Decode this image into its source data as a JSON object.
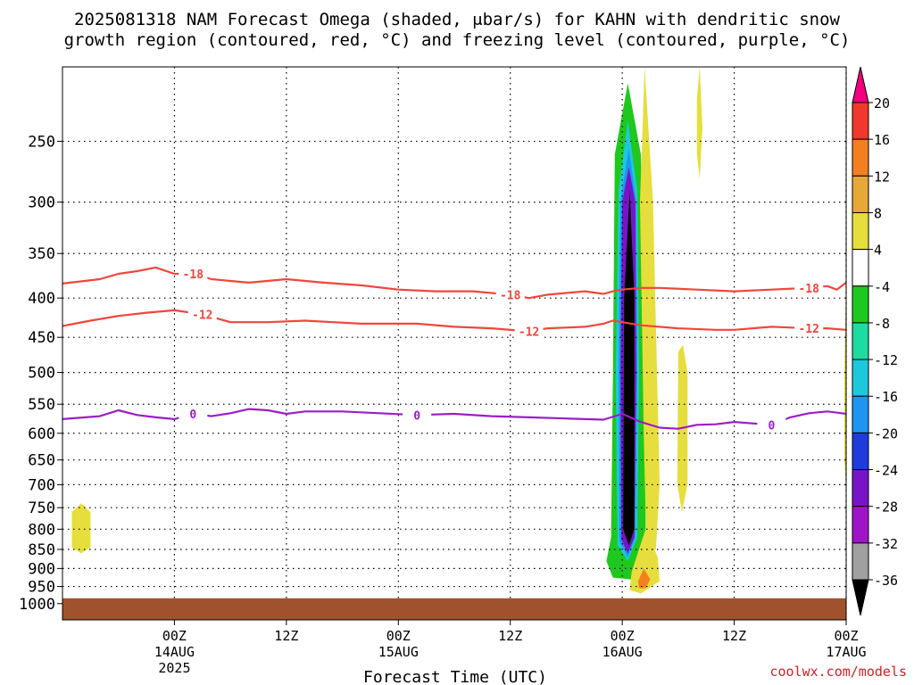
{
  "chart_data": {
    "type": "heatmap",
    "title_line1": "2025081318 NAM Forecast Omega (shaded, μbar/s) for KAHN with dendritic snow",
    "title_line2": "growth region (contoured, red, °C) and freezing level (contoured, purple, °C)",
    "xlabel": "Forecast Time (UTC)",
    "ylabel": "",
    "y_scale": "log-pressure",
    "y_axis": {
      "range": [
        200,
        1050
      ],
      "ticks": [
        250,
        300,
        350,
        400,
        450,
        500,
        550,
        600,
        650,
        700,
        750,
        800,
        850,
        900,
        950,
        1000
      ]
    },
    "x_axis": {
      "range_hours": [
        -6,
        78
      ],
      "ticks": [
        {
          "hour": 6,
          "label": "00Z",
          "sub1": "14AUG",
          "sub2": "2025"
        },
        {
          "hour": 18,
          "label": "12Z",
          "sub1": "",
          "sub2": ""
        },
        {
          "hour": 30,
          "label": "00Z",
          "sub1": "15AUG",
          "sub2": ""
        },
        {
          "hour": 42,
          "label": "12Z",
          "sub1": "",
          "sub2": ""
        },
        {
          "hour": 54,
          "label": "00Z",
          "sub1": "16AUG",
          "sub2": ""
        },
        {
          "hour": 66,
          "label": "12Z",
          "sub1": "",
          "sub2": ""
        },
        {
          "hour": 78,
          "label": "00Z",
          "sub1": "17AUG",
          "sub2": ""
        }
      ]
    },
    "colorbar": {
      "labels": [
        "20",
        "16",
        "12",
        "8",
        "4",
        "-4",
        "-8",
        "-12",
        "-16",
        "-20",
        "-24",
        "-28",
        "-32",
        "-36"
      ],
      "colors": [
        "#f2007e",
        "#f0382c",
        "#f28020",
        "#e6a838",
        "#e6de3c",
        "#ffffff",
        "#1ec81e",
        "#1edca0",
        "#1ec8dc",
        "#1e96f0",
        "#1e3cdc",
        "#7814c8",
        "#a014c8",
        "#a0a0a0",
        "#000000"
      ]
    },
    "contours": [
      {
        "label": "-18",
        "color": "#f0463c",
        "points": [
          [
            -6,
            383
          ],
          [
            -2,
            378
          ],
          [
            0,
            372
          ],
          [
            2,
            369
          ],
          [
            4,
            365
          ],
          [
            6,
            372
          ],
          [
            8,
            372
          ],
          [
            10,
            378
          ],
          [
            12,
            380
          ],
          [
            14,
            382
          ],
          [
            18,
            378
          ],
          [
            22,
            382
          ],
          [
            26,
            385
          ],
          [
            30,
            390
          ],
          [
            34,
            392
          ],
          [
            38,
            392
          ],
          [
            42,
            396
          ],
          [
            44,
            400
          ],
          [
            46,
            396
          ],
          [
            50,
            392
          ],
          [
            52,
            395
          ],
          [
            53,
            392
          ],
          [
            54,
            390
          ],
          [
            56,
            388
          ],
          [
            58,
            388
          ],
          [
            62,
            390
          ],
          [
            66,
            392
          ],
          [
            70,
            390
          ],
          [
            74,
            388
          ],
          [
            76,
            386
          ],
          [
            77,
            390
          ],
          [
            78,
            382
          ],
          [
            79,
            390
          ],
          [
            80,
            395
          ],
          [
            82,
            393
          ],
          [
            84,
            390
          ]
        ]
      },
      {
        "label": "-12",
        "color": "#f0463c",
        "points": [
          [
            -6,
            435
          ],
          [
            -3,
            428
          ],
          [
            0,
            422
          ],
          [
            3,
            418
          ],
          [
            6,
            415
          ],
          [
            9,
            420
          ],
          [
            12,
            430
          ],
          [
            16,
            430
          ],
          [
            20,
            428
          ],
          [
            26,
            432
          ],
          [
            32,
            432
          ],
          [
            36,
            436
          ],
          [
            40,
            438
          ],
          [
            44,
            442
          ],
          [
            46,
            438
          ],
          [
            50,
            436
          ],
          [
            52,
            432
          ],
          [
            53,
            428
          ],
          [
            54,
            430
          ],
          [
            56,
            434
          ],
          [
            60,
            438
          ],
          [
            64,
            440
          ],
          [
            66,
            440
          ],
          [
            70,
            436
          ],
          [
            74,
            438
          ],
          [
            76,
            438
          ],
          [
            78,
            440
          ],
          [
            79,
            430
          ],
          [
            80,
            438
          ],
          [
            82,
            440
          ],
          [
            84,
            435
          ]
        ]
      },
      {
        "label": "0",
        "color": "#9a1ec8",
        "points": [
          [
            -6,
            575
          ],
          [
            -2,
            570
          ],
          [
            0,
            560
          ],
          [
            2,
            568
          ],
          [
            4,
            572
          ],
          [
            6,
            575
          ],
          [
            8,
            566
          ],
          [
            10,
            570
          ],
          [
            12,
            565
          ],
          [
            14,
            558
          ],
          [
            16,
            560
          ],
          [
            18,
            566
          ],
          [
            20,
            562
          ],
          [
            24,
            562
          ],
          [
            28,
            565
          ],
          [
            32,
            568
          ],
          [
            36,
            566
          ],
          [
            40,
            570
          ],
          [
            44,
            572
          ],
          [
            48,
            574
          ],
          [
            52,
            576
          ],
          [
            54,
            566
          ],
          [
            56,
            580
          ],
          [
            58,
            590
          ],
          [
            60,
            592
          ],
          [
            62,
            585
          ],
          [
            64,
            584
          ],
          [
            66,
            580
          ],
          [
            70,
            585
          ],
          [
            72,
            572
          ],
          [
            74,
            565
          ],
          [
            76,
            562
          ],
          [
            80,
            570
          ],
          [
            82,
            576
          ],
          [
            84,
            570
          ]
        ]
      }
    ],
    "ground_pressure": 1000,
    "shaded_regions": [
      {
        "color": "#e6de3c",
        "points": [
          [
            -5,
            760
          ],
          [
            -4,
            740
          ],
          [
            -3,
            760
          ],
          [
            -3,
            845
          ],
          [
            -4,
            860
          ],
          [
            -5,
            845
          ]
        ]
      },
      {
        "color": "#1ec81e",
        "points": [
          [
            53.2,
            260
          ],
          [
            54.6,
            210
          ],
          [
            56.0,
            260
          ],
          [
            56.5,
            500
          ],
          [
            56.5,
            860
          ],
          [
            55,
            930
          ],
          [
            53,
            925
          ],
          [
            52.3,
            880
          ],
          [
            52.8,
            820
          ],
          [
            53.0,
            500
          ]
        ]
      },
      {
        "color": "#e6de3c",
        "points": [
          [
            55.9,
            300
          ],
          [
            56.4,
            200
          ],
          [
            57.3,
            300
          ],
          [
            58.0,
            700
          ],
          [
            57.6,
            850
          ],
          [
            56.6,
            860
          ],
          [
            56.3,
            600
          ]
        ]
      },
      {
        "color": "#1ec8dc",
        "points": [
          [
            53.6,
            290
          ],
          [
            54.6,
            235
          ],
          [
            55.6,
            290
          ],
          [
            55.8,
            500
          ],
          [
            55.6,
            820
          ],
          [
            54.6,
            880
          ],
          [
            53.5,
            840
          ],
          [
            53.3,
            500
          ]
        ]
      },
      {
        "color": "#1e96f0",
        "points": [
          [
            53.8,
            300
          ],
          [
            54.7,
            255
          ],
          [
            55.5,
            300
          ],
          [
            55.6,
            500
          ],
          [
            55.4,
            820
          ],
          [
            54.6,
            870
          ],
          [
            53.7,
            830
          ],
          [
            53.6,
            500
          ]
        ]
      },
      {
        "color": "#7814c8",
        "points": [
          [
            54.0,
            300
          ],
          [
            54.7,
            270
          ],
          [
            55.4,
            300
          ],
          [
            55.5,
            500
          ],
          [
            55.3,
            820
          ],
          [
            54.6,
            860
          ],
          [
            53.9,
            825
          ],
          [
            53.8,
            500
          ]
        ]
      },
      {
        "color": "#000000",
        "points": [
          [
            54.2,
            400
          ],
          [
            54.8,
            290
          ],
          [
            55.3,
            400
          ],
          [
            55.3,
            800
          ],
          [
            54.7,
            840
          ],
          [
            54.1,
            800
          ]
        ]
      },
      {
        "color": "#e6de3c",
        "points": [
          [
            60.0,
            470
          ],
          [
            60.5,
            460
          ],
          [
            61.0,
            500
          ],
          [
            61.0,
            700
          ],
          [
            60.4,
            760
          ],
          [
            59.9,
            700
          ]
        ]
      },
      {
        "color": "#e6de3c",
        "points": [
          [
            55.0,
            910
          ],
          [
            56.5,
            800
          ],
          [
            57.8,
            870
          ],
          [
            58.0,
            935
          ],
          [
            56.0,
            970
          ],
          [
            54.8,
            960
          ]
        ]
      },
      {
        "color": "#f28020",
        "points": [
          [
            55.7,
            935
          ],
          [
            56.3,
            900
          ],
          [
            57.0,
            930
          ],
          [
            56.5,
            955
          ],
          [
            55.8,
            955
          ]
        ]
      },
      {
        "color": "#e6de3c",
        "points": [
          [
            62.0,
            220
          ],
          [
            62.3,
            200
          ],
          [
            62.6,
            240
          ],
          [
            62.3,
            280
          ],
          [
            62.0,
            260
          ]
        ]
      },
      {
        "color": "#1ec81e",
        "points": [
          [
            78.5,
            300
          ],
          [
            79.0,
            200
          ],
          [
            81.0,
            200
          ],
          [
            81.5,
            300
          ],
          [
            81.4,
            380
          ],
          [
            80.5,
            400
          ],
          [
            79.0,
            380
          ]
        ]
      },
      {
        "color": "#1edca0",
        "points": [
          [
            80.5,
            230
          ],
          [
            81.2,
            200
          ],
          [
            81.6,
            300
          ],
          [
            81.2,
            340
          ],
          [
            80.6,
            300
          ]
        ]
      },
      {
        "color": "#e6de3c",
        "points": [
          [
            78.0,
            380
          ],
          [
            79.0,
            370
          ],
          [
            81.0,
            380
          ],
          [
            81.5,
            450
          ],
          [
            81.5,
            850
          ],
          [
            80.0,
            880
          ],
          [
            78.5,
            860
          ],
          [
            77.8,
            650
          ],
          [
            77.8,
            500
          ]
        ]
      },
      {
        "color": "#e6a838",
        "points": [
          [
            83.0,
            330
          ],
          [
            84.0,
            290
          ],
          [
            84.2,
            390
          ],
          [
            83.0,
            420
          ],
          [
            82.5,
            380
          ]
        ]
      },
      {
        "color": "#f28020",
        "points": [
          [
            78.4,
            440
          ],
          [
            79.5,
            400
          ],
          [
            81.0,
            440
          ],
          [
            81.5,
            700
          ],
          [
            80.5,
            800
          ],
          [
            79.0,
            820
          ],
          [
            78.2,
            700
          ]
        ]
      },
      {
        "color": "#f2007e",
        "points": [
          [
            78.6,
            380
          ],
          [
            79.2,
            370
          ],
          [
            80.2,
            390
          ],
          [
            80.6,
            600
          ],
          [
            79.8,
            680
          ],
          [
            78.8,
            650
          ],
          [
            78.4,
            500
          ]
        ]
      },
      {
        "color": "#1ec81e",
        "points": [
          [
            80.2,
            855
          ],
          [
            80.7,
            840
          ],
          [
            80.9,
            920
          ],
          [
            80.5,
            960
          ],
          [
            80.0,
            920
          ]
        ]
      }
    ]
  },
  "credit": "coolwx.com/models"
}
